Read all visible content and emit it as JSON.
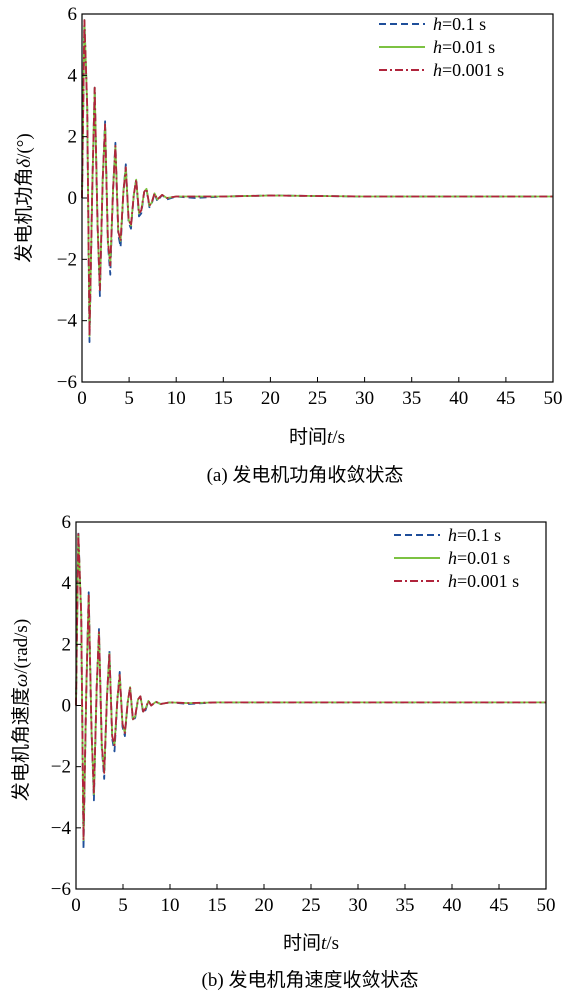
{
  "captions": {
    "a": "(a) 发电机功角收敛状态",
    "b": "(b) 发电机角速度收敛状态"
  },
  "chart_data": [
    {
      "type": "line",
      "panel": "a",
      "xlabel": {
        "prefix": "时间",
        "var": "t",
        "unit": "/s"
      },
      "ylabel": {
        "prefix": "发电机功角",
        "var": "δ",
        "unit": "/(°)"
      },
      "xlim": [
        0,
        50
      ],
      "ylim": [
        -6,
        6
      ],
      "xticks": [
        0,
        5,
        10,
        15,
        20,
        25,
        30,
        35,
        40,
        45,
        50
      ],
      "yticks": [
        -6,
        -4,
        -2,
        0,
        2,
        4,
        6
      ],
      "grid": false,
      "legend_position": "top-right",
      "series": [
        {
          "name": "h=0.1 s",
          "legend": {
            "var": "h",
            "rest": "=0.1 s"
          },
          "color": "#1f4e9a",
          "dash": "dashed",
          "x": [
            0,
            0.25,
            0.55,
            0.8,
            1.1,
            1.35,
            1.65,
            1.9,
            2.2,
            2.45,
            2.75,
            3.0,
            3.3,
            3.55,
            3.85,
            4.1,
            4.4,
            4.65,
            4.95,
            5.2,
            5.5,
            5.75,
            6.05,
            6.3,
            6.6,
            6.85,
            7.15,
            7.4,
            7.7,
            8.0,
            8.5,
            9.0,
            10,
            12,
            15,
            20,
            30,
            40,
            50
          ],
          "values": [
            0,
            5.8,
            3.0,
            -4.7,
            0.5,
            3.6,
            -0.8,
            -3.2,
            0.6,
            2.5,
            -1.5,
            -2.5,
            0.3,
            1.8,
            -1.2,
            -1.6,
            0.2,
            1.1,
            -0.8,
            -1.0,
            0.1,
            0.6,
            -0.6,
            -0.5,
            0.2,
            0.3,
            -0.3,
            -0.2,
            0.15,
            -0.1,
            0.1,
            -0.05,
            0.05,
            0.0,
            0.05,
            0.08,
            0.05,
            0.05,
            0.05
          ]
        },
        {
          "name": "h=0.01 s",
          "legend": {
            "var": "h",
            "rest": "=0.01 s"
          },
          "color": "#7cc242",
          "dash": "solid",
          "x": [
            0,
            0.25,
            0.55,
            0.8,
            1.1,
            1.35,
            1.65,
            1.9,
            2.2,
            2.45,
            2.75,
            3.0,
            3.3,
            3.55,
            3.85,
            4.1,
            4.4,
            4.65,
            4.95,
            5.2,
            5.5,
            5.75,
            6.05,
            6.3,
            6.6,
            6.85,
            7.15,
            7.4,
            7.7,
            8.0,
            8.5,
            9.0,
            10,
            12,
            15,
            20,
            30,
            40,
            50
          ],
          "values": [
            0,
            5.8,
            3.0,
            -4.5,
            0.5,
            3.6,
            -0.8,
            -3.0,
            0.6,
            2.4,
            -1.4,
            -2.2,
            0.3,
            1.7,
            -1.1,
            -1.4,
            0.2,
            1.0,
            -0.7,
            -0.9,
            0.1,
            0.6,
            -0.5,
            -0.4,
            0.2,
            0.3,
            -0.25,
            -0.15,
            0.15,
            -0.05,
            0.1,
            0.0,
            0.05,
            0.05,
            0.05,
            0.08,
            0.05,
            0.05,
            0.05
          ]
        },
        {
          "name": "h=0.001 s",
          "legend": {
            "var": "h",
            "rest": "=0.001 s"
          },
          "color": "#b0243c",
          "dash": "dashdot",
          "x": [
            0,
            0.25,
            0.55,
            0.8,
            1.1,
            1.35,
            1.65,
            1.9,
            2.2,
            2.45,
            2.75,
            3.0,
            3.3,
            3.55,
            3.85,
            4.1,
            4.4,
            4.65,
            4.95,
            5.2,
            5.5,
            5.75,
            6.05,
            6.3,
            6.6,
            6.85,
            7.15,
            7.4,
            7.7,
            8.0,
            8.5,
            9.0,
            10,
            12,
            15,
            20,
            30,
            40,
            50
          ],
          "values": [
            0,
            5.8,
            3.0,
            -4.5,
            0.5,
            3.6,
            -0.8,
            -3.0,
            0.6,
            2.4,
            -1.4,
            -2.2,
            0.3,
            1.7,
            -1.1,
            -1.4,
            0.2,
            1.0,
            -0.7,
            -0.9,
            0.1,
            0.6,
            -0.5,
            -0.4,
            0.2,
            0.3,
            -0.25,
            -0.15,
            0.15,
            -0.05,
            0.1,
            0.0,
            0.05,
            0.05,
            0.05,
            0.08,
            0.05,
            0.05,
            0.05
          ]
        }
      ]
    },
    {
      "type": "line",
      "panel": "b",
      "xlabel": {
        "prefix": "时间",
        "var": "t",
        "unit": "/s"
      },
      "ylabel": {
        "prefix": "发电机角速度",
        "var": "ω",
        "unit": "/(rad/s)"
      },
      "xlim": [
        0,
        50
      ],
      "ylim": [
        -6,
        6
      ],
      "xticks": [
        0,
        5,
        10,
        15,
        20,
        25,
        30,
        35,
        40,
        45,
        50
      ],
      "yticks": [
        -6,
        -4,
        -2,
        0,
        2,
        4,
        6
      ],
      "grid": false,
      "legend_position": "top-right",
      "series": [
        {
          "name": "h=0.1 s",
          "legend": {
            "var": "h",
            "rest": "=0.1 s"
          },
          "color": "#1f4e9a",
          "dash": "dashed",
          "x": [
            0,
            0.25,
            0.55,
            0.8,
            1.1,
            1.35,
            1.65,
            1.9,
            2.2,
            2.45,
            2.75,
            3.0,
            3.3,
            3.55,
            3.85,
            4.1,
            4.4,
            4.65,
            4.95,
            5.2,
            5.5,
            5.75,
            6.05,
            6.3,
            6.6,
            6.85,
            7.15,
            7.4,
            7.7,
            8.0,
            8.5,
            9.0,
            10,
            12,
            15,
            20,
            30,
            40,
            50
          ],
          "values": [
            0,
            5.7,
            3.0,
            -4.7,
            0.5,
            3.7,
            -0.8,
            -3.1,
            0.6,
            2.5,
            -1.4,
            -2.4,
            0.3,
            1.8,
            -1.1,
            -1.5,
            0.2,
            1.1,
            -0.7,
            -1.0,
            0.1,
            0.6,
            -0.5,
            -0.4,
            0.2,
            0.3,
            -0.25,
            -0.15,
            0.15,
            0.0,
            0.12,
            0.05,
            0.1,
            0.05,
            0.1,
            0.1,
            0.1,
            0.1,
            0.1
          ]
        },
        {
          "name": "h=0.01 s",
          "legend": {
            "var": "h",
            "rest": "=0.01 s"
          },
          "color": "#7cc242",
          "dash": "solid",
          "x": [
            0,
            0.25,
            0.55,
            0.8,
            1.1,
            1.35,
            1.65,
            1.9,
            2.2,
            2.45,
            2.75,
            3.0,
            3.3,
            3.55,
            3.85,
            4.1,
            4.4,
            4.65,
            4.95,
            5.2,
            5.5,
            5.75,
            6.05,
            6.3,
            6.6,
            6.85,
            7.15,
            7.4,
            7.7,
            8.0,
            8.5,
            9.0,
            10,
            12,
            15,
            20,
            30,
            40,
            50
          ],
          "values": [
            0,
            5.6,
            3.0,
            -4.4,
            0.5,
            3.6,
            -0.8,
            -2.9,
            0.6,
            2.4,
            -1.3,
            -2.2,
            0.3,
            1.7,
            -1.0,
            -1.3,
            0.2,
            1.0,
            -0.6,
            -0.9,
            0.1,
            0.6,
            -0.45,
            -0.35,
            0.2,
            0.3,
            -0.2,
            -0.1,
            0.15,
            0.0,
            0.12,
            0.05,
            0.1,
            0.08,
            0.1,
            0.1,
            0.1,
            0.1,
            0.1
          ]
        },
        {
          "name": "h=0.001 s",
          "legend": {
            "var": "h",
            "rest": "=0.001 s"
          },
          "color": "#b0243c",
          "dash": "dashdot",
          "x": [
            0,
            0.25,
            0.55,
            0.8,
            1.1,
            1.35,
            1.65,
            1.9,
            2.2,
            2.45,
            2.75,
            3.0,
            3.3,
            3.55,
            3.85,
            4.1,
            4.4,
            4.65,
            4.95,
            5.2,
            5.5,
            5.75,
            6.05,
            6.3,
            6.6,
            6.85,
            7.15,
            7.4,
            7.7,
            8.0,
            8.5,
            9.0,
            10,
            12,
            15,
            20,
            30,
            40,
            50
          ],
          "values": [
            0,
            5.6,
            3.0,
            -4.4,
            0.5,
            3.6,
            -0.8,
            -2.9,
            0.6,
            2.4,
            -1.3,
            -2.2,
            0.3,
            1.7,
            -1.0,
            -1.3,
            0.2,
            1.0,
            -0.6,
            -0.9,
            0.1,
            0.6,
            -0.45,
            -0.35,
            0.2,
            0.3,
            -0.2,
            -0.1,
            0.15,
            0.0,
            0.12,
            0.05,
            0.1,
            0.08,
            0.1,
            0.1,
            0.1,
            0.1,
            0.1
          ]
        }
      ]
    }
  ]
}
